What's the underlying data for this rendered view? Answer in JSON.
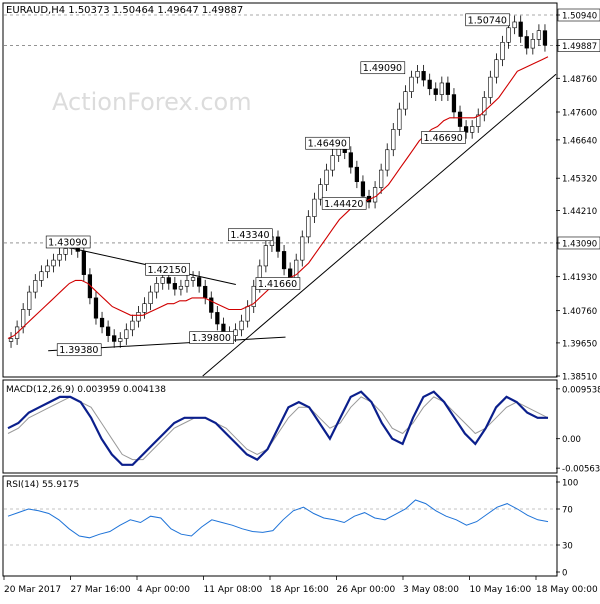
{
  "chart_data": {
    "type": "candlestick",
    "symbol_header": "EURAUD,H4  1.50373 1.50464 1.49647 1.49887",
    "watermark": "ActionForex.com",
    "price_axis": {
      "ticks": [
        "1.50940",
        "1.49887",
        "1.48760",
        "1.47600",
        "1.46640",
        "1.45320",
        "1.44210",
        "1.43090",
        "1.41930",
        "1.40760",
        "1.39650",
        "1.38510"
      ],
      "highlighted": [
        "1.50940",
        "1.49887",
        "1.43090"
      ],
      "range": [
        1.3851,
        1.5094
      ]
    },
    "time_axis": {
      "ticks": [
        "20 Mar 2017",
        "27 Mar 16:00",
        "4 Apr 00:00",
        "11 Apr 08:00",
        "18 Apr 16:00",
        "26 Apr 00:00",
        "3 May 08:00",
        "10 May 16:00",
        "18 May 00:00"
      ]
    },
    "price_labels": [
      {
        "text": "1.43090",
        "price": 1.4309
      },
      {
        "text": "1.39380",
        "price": 1.3938
      },
      {
        "text": "1.42150",
        "price": 1.4215
      },
      {
        "text": "1.39800",
        "price": 1.398
      },
      {
        "text": "1.43340",
        "price": 1.4334
      },
      {
        "text": "1.41660",
        "price": 1.4166
      },
      {
        "text": "1.46490",
        "price": 1.4649
      },
      {
        "text": "1.44420",
        "price": 1.4442
      },
      {
        "text": "1.49090",
        "price": 1.4909
      },
      {
        "text": "1.46690",
        "price": 1.4669
      },
      {
        "text": "1.50740",
        "price": 1.5074
      }
    ],
    "price_series_close": [
      1.398,
      1.402,
      1.408,
      1.414,
      1.418,
      1.421,
      1.423,
      1.425,
      1.427,
      1.429,
      1.431,
      1.428,
      1.42,
      1.412,
      1.405,
      1.402,
      1.399,
      1.397,
      1.398,
      1.401,
      1.404,
      1.407,
      1.41,
      1.414,
      1.417,
      1.419,
      1.417,
      1.415,
      1.416,
      1.418,
      1.419,
      1.416,
      1.412,
      1.407,
      1.403,
      1.4,
      1.399,
      1.401,
      1.404,
      1.409,
      1.416,
      1.423,
      1.43,
      1.433,
      1.428,
      1.422,
      1.418,
      1.425,
      1.433,
      1.44,
      1.446,
      1.451,
      1.456,
      1.461,
      1.465,
      1.462,
      1.457,
      1.452,
      1.447,
      1.445,
      1.45,
      1.456,
      1.463,
      1.47,
      1.477,
      1.483,
      1.488,
      1.49,
      1.487,
      1.484,
      1.482,
      1.486,
      1.482,
      1.476,
      1.471,
      1.469,
      1.471,
      1.475,
      1.481,
      1.488,
      1.494,
      1.5,
      1.505,
      1.507,
      1.502,
      1.498,
      1.501,
      1.504,
      1.499
    ],
    "ma_series": [
      1.398,
      1.399,
      1.401,
      1.403,
      1.405,
      1.407,
      1.409,
      1.411,
      1.413,
      1.415,
      1.417,
      1.418,
      1.418,
      1.417,
      1.415,
      1.413,
      1.411,
      1.409,
      1.408,
      1.407,
      1.406,
      1.406,
      1.406,
      1.407,
      1.408,
      1.409,
      1.41,
      1.41,
      1.411,
      1.411,
      1.412,
      1.412,
      1.412,
      1.411,
      1.41,
      1.409,
      1.408,
      1.408,
      1.408,
      1.409,
      1.41,
      1.412,
      1.414,
      1.416,
      1.417,
      1.418,
      1.419,
      1.42,
      1.422,
      1.424,
      1.427,
      1.43,
      1.433,
      1.436,
      1.439,
      1.441,
      1.443,
      1.444,
      1.445,
      1.446,
      1.447,
      1.449,
      1.451,
      1.454,
      1.457,
      1.46,
      1.463,
      1.466,
      1.468,
      1.47,
      1.471,
      1.473,
      1.474,
      1.474,
      1.474,
      1.474,
      1.474,
      1.475,
      1.477,
      1.479,
      1.481,
      1.484,
      1.487,
      1.49,
      1.491,
      1.492,
      1.493,
      1.494,
      1.495
    ],
    "trendlines": [
      {
        "from": [
          0.08,
          1.4309
        ],
        "to": [
          0.42,
          1.4166
        ]
      },
      {
        "from": [
          0.08,
          1.3938
        ],
        "to": [
          0.51,
          1.3985
        ]
      },
      {
        "from": [
          0.36,
          1.3851
        ],
        "to": [
          1.0,
          1.489
        ]
      }
    ],
    "macd": {
      "label": "MACD(12,26,9) 0.003959 0.004138",
      "ticks": [
        "0.009538",
        "0.00",
        "-0.005637"
      ],
      "range": [
        -0.0058,
        0.0097
      ],
      "main": [
        0.002,
        0.003,
        0.005,
        0.006,
        0.007,
        0.008,
        0.008,
        0.007,
        0.004,
        0.0,
        -0.003,
        -0.005,
        -0.005,
        -0.003,
        -0.001,
        0.001,
        0.003,
        0.004,
        0.004,
        0.004,
        0.003,
        0.001,
        -0.001,
        -0.003,
        -0.004,
        -0.002,
        0.002,
        0.006,
        0.007,
        0.006,
        0.003,
        0.0,
        0.004,
        0.008,
        0.009,
        0.007,
        0.003,
        0.0,
        -0.001,
        0.004,
        0.008,
        0.009,
        0.007,
        0.004,
        0.001,
        -0.001,
        0.002,
        0.006,
        0.008,
        0.007,
        0.005,
        0.004,
        0.004
      ],
      "signal": [
        0.001,
        0.002,
        0.004,
        0.005,
        0.006,
        0.007,
        0.008,
        0.007,
        0.006,
        0.003,
        0.0,
        -0.003,
        -0.004,
        -0.004,
        -0.002,
        0.0,
        0.002,
        0.003,
        0.004,
        0.004,
        0.003,
        0.002,
        0.0,
        -0.002,
        -0.003,
        -0.002,
        0.001,
        0.004,
        0.006,
        0.006,
        0.004,
        0.002,
        0.003,
        0.006,
        0.008,
        0.007,
        0.005,
        0.002,
        0.001,
        0.003,
        0.006,
        0.008,
        0.007,
        0.005,
        0.003,
        0.001,
        0.002,
        0.004,
        0.006,
        0.007,
        0.006,
        0.005,
        0.004
      ]
    },
    "rsi": {
      "label": "RSI(14) 55.9175",
      "ticks": [
        "100",
        "70",
        "30",
        "0"
      ],
      "range": [
        0,
        100
      ],
      "levels": [
        70,
        30
      ],
      "values": [
        62,
        66,
        70,
        68,
        65,
        58,
        48,
        40,
        38,
        42,
        45,
        52,
        58,
        55,
        62,
        60,
        48,
        42,
        40,
        50,
        58,
        55,
        52,
        48,
        45,
        44,
        46,
        58,
        68,
        72,
        65,
        60,
        58,
        55,
        62,
        66,
        60,
        58,
        64,
        70,
        80,
        76,
        68,
        62,
        58,
        52,
        56,
        64,
        72,
        76,
        70,
        63,
        58,
        56
      ]
    }
  }
}
